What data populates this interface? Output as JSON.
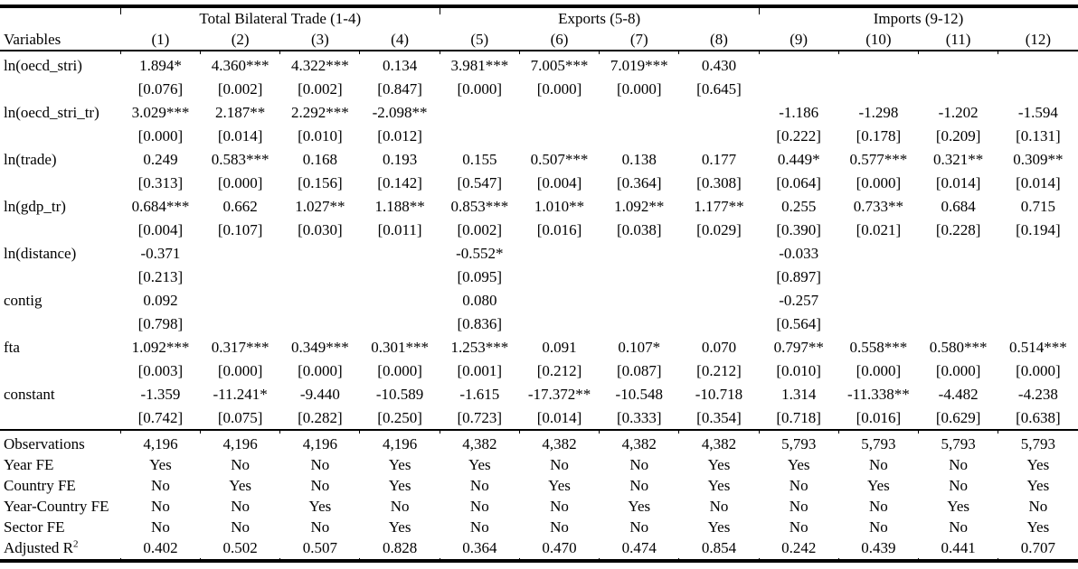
{
  "table": {
    "groups": [
      {
        "label": "Total Bilateral Trade (1-4)",
        "span": 4
      },
      {
        "label": "Exports (5-8)",
        "span": 4
      },
      {
        "label": "Imports (9-12)",
        "span": 4
      }
    ],
    "variables_header": "Variables",
    "column_headers": [
      "(1)",
      "(2)",
      "(3)",
      "(4)",
      "(5)",
      "(6)",
      "(7)",
      "(8)",
      "(9)",
      "(10)",
      "(11)",
      "(12)"
    ],
    "coefficient_rows": [
      {
        "label": "ln(oecd_stri)",
        "coef": [
          "1.894*",
          "4.360***",
          "4.322***",
          "0.134",
          "3.981***",
          "7.005***",
          "7.019***",
          "0.430",
          "",
          "",
          "",
          ""
        ],
        "p": [
          "[0.076]",
          "[0.002]",
          "[0.002]",
          "[0.847]",
          "[0.000]",
          "[0.000]",
          "[0.000]",
          "[0.645]",
          "",
          "",
          "",
          ""
        ]
      },
      {
        "label": "ln(oecd_stri_tr)",
        "coef": [
          "3.029***",
          "2.187**",
          "2.292***",
          "-2.098**",
          "",
          "",
          "",
          "",
          "-1.186",
          "-1.298",
          "-1.202",
          "-1.594"
        ],
        "p": [
          "[0.000]",
          "[0.014]",
          "[0.010]",
          "[0.012]",
          "",
          "",
          "",
          "",
          "[0.222]",
          "[0.178]",
          "[0.209]",
          "[0.131]"
        ]
      },
      {
        "label": "ln(trade)",
        "coef": [
          "0.249",
          "0.583***",
          "0.168",
          "0.193",
          "0.155",
          "0.507***",
          "0.138",
          "0.177",
          "0.449*",
          "0.577***",
          "0.321**",
          "0.309**"
        ],
        "p": [
          "[0.313]",
          "[0.000]",
          "[0.156]",
          "[0.142]",
          "[0.547]",
          "[0.004]",
          "[0.364]",
          "[0.308]",
          "[0.064]",
          "[0.000]",
          "[0.014]",
          "[0.014]"
        ]
      },
      {
        "label": "ln(gdp_tr)",
        "coef": [
          "0.684***",
          "0.662",
          "1.027**",
          "1.188**",
          "0.853***",
          "1.010**",
          "1.092**",
          "1.177**",
          "0.255",
          "0.733**",
          "0.684",
          "0.715"
        ],
        "p": [
          "[0.004]",
          "[0.107]",
          "[0.030]",
          "[0.011]",
          "[0.002]",
          "[0.016]",
          "[0.038]",
          "[0.029]",
          "[0.390]",
          "[0.021]",
          "[0.228]",
          "[0.194]"
        ]
      },
      {
        "label": "ln(distance)",
        "coef": [
          "-0.371",
          "",
          "",
          "",
          "-0.552*",
          "",
          "",
          "",
          "-0.033",
          "",
          "",
          ""
        ],
        "p": [
          "[0.213]",
          "",
          "",
          "",
          "[0.095]",
          "",
          "",
          "",
          "[0.897]",
          "",
          "",
          ""
        ]
      },
      {
        "label": "contig",
        "coef": [
          "0.092",
          "",
          "",
          "",
          "0.080",
          "",
          "",
          "",
          "-0.257",
          "",
          "",
          ""
        ],
        "p": [
          "[0.798]",
          "",
          "",
          "",
          "[0.836]",
          "",
          "",
          "",
          "[0.564]",
          "",
          "",
          ""
        ]
      },
      {
        "label": "fta",
        "coef": [
          "1.092***",
          "0.317***",
          "0.349***",
          "0.301***",
          "1.253***",
          "0.091",
          "0.107*",
          "0.070",
          "0.797**",
          "0.558***",
          "0.580***",
          "0.514***"
        ],
        "p": [
          "[0.003]",
          "[0.000]",
          "[0.000]",
          "[0.000]",
          "[0.001]",
          "[0.212]",
          "[0.087]",
          "[0.212]",
          "[0.010]",
          "[0.000]",
          "[0.000]",
          "[0.000]"
        ]
      },
      {
        "label": "constant",
        "coef": [
          "-1.359",
          "-11.241*",
          "-9.440",
          "-10.589",
          "-1.615",
          "-17.372**",
          "-10.548",
          "-10.718",
          "1.314",
          "-11.338**",
          "-4.482",
          "-4.238"
        ],
        "p": [
          "[0.742]",
          "[0.075]",
          "[0.282]",
          "[0.250]",
          "[0.723]",
          "[0.014]",
          "[0.333]",
          "[0.354]",
          "[0.718]",
          "[0.016]",
          "[0.629]",
          "[0.638]"
        ]
      }
    ],
    "summary_rows": [
      {
        "label": "Observations",
        "values": [
          "4,196",
          "4,196",
          "4,196",
          "4,196",
          "4,382",
          "4,382",
          "4,382",
          "4,382",
          "5,793",
          "5,793",
          "5,793",
          "5,793"
        ]
      },
      {
        "label": "Year FE",
        "values": [
          "Yes",
          "No",
          "No",
          "Yes",
          "Yes",
          "No",
          "No",
          "Yes",
          "Yes",
          "No",
          "No",
          "Yes"
        ]
      },
      {
        "label": "Country FE",
        "values": [
          "No",
          "Yes",
          "No",
          "Yes",
          "No",
          "Yes",
          "No",
          "Yes",
          "No",
          "Yes",
          "No",
          "Yes"
        ]
      },
      {
        "label": "Year-Country FE",
        "values": [
          "No",
          "No",
          "Yes",
          "No",
          "No",
          "No",
          "Yes",
          "No",
          "No",
          "No",
          "Yes",
          "No"
        ]
      },
      {
        "label": "Sector FE",
        "values": [
          "No",
          "No",
          "No",
          "Yes",
          "No",
          "No",
          "No",
          "Yes",
          "No",
          "No",
          "No",
          "Yes"
        ]
      },
      {
        "label": "Adjusted R",
        "label_sup": "2",
        "values": [
          "0.402",
          "0.502",
          "0.507",
          "0.828",
          "0.364",
          "0.470",
          "0.474",
          "0.854",
          "0.242",
          "0.439",
          "0.441",
          "0.707"
        ]
      }
    ]
  }
}
